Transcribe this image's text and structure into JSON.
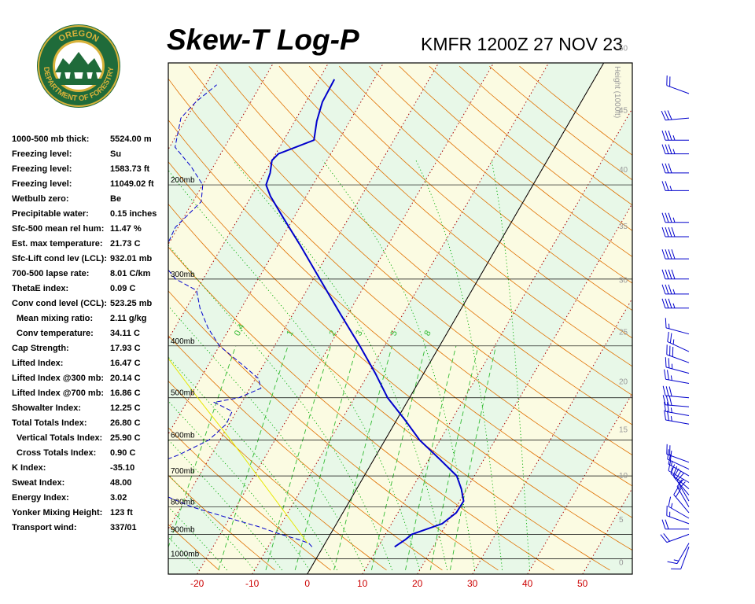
{
  "header": {
    "title": "Skew-T Log-P",
    "station": "KMFR 1200Z 27 NOV 23"
  },
  "logo": {
    "top_text": "OREGON",
    "bottom_text": "DEPARTMENT OF FORESTRY",
    "colors": {
      "ring": "#1f6b3a",
      "gold": "#d8b23a",
      "sky": "#ffffff"
    }
  },
  "indices": [
    {
      "label": "1000-500 mb thick:",
      "value": "5524.00 m"
    },
    {
      "label": "Freezing level:",
      "value": "Su"
    },
    {
      "label": "Freezing level:",
      "value": "1583.73 ft"
    },
    {
      "label": "Freezing level:",
      "value": "11049.02 ft"
    },
    {
      "label": "Wetbulb zero:",
      "value": "Be"
    },
    {
      "label": "Precipitable water:",
      "value": "0.15 inches"
    },
    {
      "label": "Sfc-500 mean rel hum:",
      "value": "11.47 %"
    },
    {
      "label": "Est. max temperature:",
      "value": "21.73 C"
    },
    {
      "label": "Sfc-Lift cond lev (LCL):",
      "value": "932.01 mb"
    },
    {
      "label": "700-500 lapse rate:",
      "value": "8.01 C/km"
    },
    {
      "label": "ThetaE index:",
      "value": "0.09 C"
    },
    {
      "label": "Conv cond level (CCL):",
      "value": "523.25 mb"
    },
    {
      "label": "Mean mixing ratio:",
      "value": "2.11 g/kg",
      "indent": true
    },
    {
      "label": "Conv temperature:",
      "value": "34.11 C",
      "indent": true
    },
    {
      "label": "Cap Strength:",
      "value": "17.93 C"
    },
    {
      "label": "Lifted Index:",
      "value": "16.47 C"
    },
    {
      "label": "Lifted Index @300 mb:",
      "value": "20.14 C"
    },
    {
      "label": "Lifted Index @700 mb:",
      "value": "16.86 C"
    },
    {
      "label": "Showalter Index:",
      "value": "12.25 C"
    },
    {
      "label": "Total Totals Index:",
      "value": "26.80 C"
    },
    {
      "label": "Vertical Totals Index:",
      "value": "25.90 C",
      "indent": true
    },
    {
      "label": "Cross Totals Index:",
      "value": "0.90 C",
      "indent": true
    },
    {
      "label": "K Index:",
      "value": "-35.10"
    },
    {
      "label": "Sweat Index:",
      "value": "48.00"
    },
    {
      "label": "Energy Index:",
      "value": "3.02"
    },
    {
      "label": "Yonker Mixing Height:",
      "value": "123 ft"
    },
    {
      "label": "Transport wind:",
      "value": "337/01"
    }
  ],
  "chart_data": {
    "type": "line",
    "title": "Skew-T Log-P",
    "subtitle": "KMFR 1200Z 27 NOV 23",
    "xlabel": "",
    "ylabel": "",
    "x_ticks": [
      -20,
      -10,
      0,
      10,
      20,
      30,
      40,
      50
    ],
    "pressure_levels": [
      "200mb",
      "300mb",
      "400mb",
      "500mb",
      "600mb",
      "700mb",
      "800mb",
      "900mb",
      "1000mb"
    ],
    "pressure_values": [
      200,
      300,
      400,
      500,
      600,
      700,
      800,
      900,
      1000
    ],
    "height_axis_label": "Height (1000ft)",
    "height_ticks": [
      0,
      5,
      10,
      15,
      20,
      25,
      30,
      35,
      40,
      45,
      50
    ],
    "mixing_ratio_labels": [
      "0.4",
      "1",
      "2",
      "3",
      "5",
      "8"
    ],
    "series": [
      {
        "name": "Temperature",
        "color": "#0000cc",
        "style": "solid",
        "points": [
          {
            "p": 950,
            "t": 13.0
          },
          {
            "p": 920,
            "t": 14.2
          },
          {
            "p": 900,
            "t": 14.8
          },
          {
            "p": 860,
            "t": 19.2
          },
          {
            "p": 820,
            "t": 20.6
          },
          {
            "p": 780,
            "t": 20.7
          },
          {
            "p": 740,
            "t": 19.0
          },
          {
            "p": 700,
            "t": 16.8
          },
          {
            "p": 650,
            "t": 11.8
          },
          {
            "p": 600,
            "t": 6.3
          },
          {
            "p": 550,
            "t": 1.5
          },
          {
            "p": 500,
            "t": -4.0
          },
          {
            "p": 450,
            "t": -8.8
          },
          {
            "p": 400,
            "t": -14.5
          },
          {
            "p": 350,
            "t": -21.2
          },
          {
            "p": 300,
            "t": -28.8
          },
          {
            "p": 260,
            "t": -35.8
          },
          {
            "p": 230,
            "t": -42.0
          },
          {
            "p": 210,
            "t": -46.5
          },
          {
            "p": 200,
            "t": -48.5
          },
          {
            "p": 190,
            "t": -49.0
          },
          {
            "p": 180,
            "t": -50.0
          },
          {
            "p": 175,
            "t": -49.5
          },
          {
            "p": 165,
            "t": -44.5
          },
          {
            "p": 152,
            "t": -46.0
          },
          {
            "p": 140,
            "t": -47.0
          },
          {
            "p": 127,
            "t": -47.2
          }
        ]
      },
      {
        "name": "Dewpoint",
        "color": "#0000cc",
        "style": "dashed",
        "points": [
          {
            "p": 950,
            "t": -2.0
          },
          {
            "p": 935,
            "t": -3.0
          },
          {
            "p": 920,
            "t": -5.3
          },
          {
            "p": 900,
            "t": -9.0
          },
          {
            "p": 870,
            "t": -14.0
          },
          {
            "p": 840,
            "t": -20.0
          },
          {
            "p": 800,
            "t": -28.0
          },
          {
            "p": 760,
            "t": -34.5
          },
          {
            "p": 730,
            "t": -39.5
          },
          {
            "p": 700,
            "t": -41.0
          },
          {
            "p": 670,
            "t": -40.0
          },
          {
            "p": 640,
            "t": -36.0
          },
          {
            "p": 600,
            "t": -32.0
          },
          {
            "p": 560,
            "t": -30.5
          },
          {
            "p": 530,
            "t": -30.8
          },
          {
            "p": 510,
            "t": -35.0
          },
          {
            "p": 500,
            "t": -31.0
          },
          {
            "p": 480,
            "t": -28.0
          },
          {
            "p": 460,
            "t": -29.5
          },
          {
            "p": 430,
            "t": -34.5
          },
          {
            "p": 400,
            "t": -40.0
          },
          {
            "p": 370,
            "t": -44.0
          },
          {
            "p": 340,
            "t": -47.5
          },
          {
            "p": 315,
            "t": -50.0
          },
          {
            "p": 300,
            "t": -55.0
          },
          {
            "p": 285,
            "t": -58.0
          },
          {
            "p": 265,
            "t": -60.0
          },
          {
            "p": 240,
            "t": -60.5
          },
          {
            "p": 215,
            "t": -58.5
          },
          {
            "p": 200,
            "t": -60.0
          },
          {
            "p": 185,
            "t": -64.0
          },
          {
            "p": 170,
            "t": -69.0
          },
          {
            "p": 150,
            "t": -71.0
          },
          {
            "p": 140,
            "t": -70.0
          },
          {
            "p": 130,
            "t": -68.0
          }
        ]
      },
      {
        "name": "Parcel",
        "color": "#e8e800",
        "style": "solid",
        "points": [
          {
            "p": 935,
            "t": -3.2
          },
          {
            "p": 850,
            "t": -8.5
          },
          {
            "p": 750,
            "t": -15.5
          },
          {
            "p": 650,
            "t": -23.5
          },
          {
            "p": 600,
            "t": -28.0
          },
          {
            "p": 500,
            "t": -38.5
          },
          {
            "p": 400,
            "t": -51.0
          }
        ]
      }
    ],
    "wind_barbs": [
      {
        "p": 950,
        "dir": 200,
        "spd": 10
      },
      {
        "p": 935,
        "dir": 210,
        "spd": 15
      },
      {
        "p": 900,
        "dir": 250,
        "spd": 20
      },
      {
        "p": 880,
        "dir": 270,
        "spd": 20
      },
      {
        "p": 860,
        "dir": 290,
        "spd": 15
      },
      {
        "p": 840,
        "dir": 300,
        "spd": 15
      },
      {
        "p": 820,
        "dir": 320,
        "spd": 20
      },
      {
        "p": 800,
        "dir": 330,
        "spd": 20
      },
      {
        "p": 780,
        "dir": 330,
        "spd": 15
      },
      {
        "p": 760,
        "dir": 320,
        "spd": 20
      },
      {
        "p": 740,
        "dir": 310,
        "spd": 20
      },
      {
        "p": 720,
        "dir": 300,
        "spd": 15
      },
      {
        "p": 700,
        "dir": 300,
        "spd": 15
      },
      {
        "p": 680,
        "dir": 295,
        "spd": 20
      },
      {
        "p": 660,
        "dir": 290,
        "spd": 20
      },
      {
        "p": 560,
        "dir": 280,
        "spd": 25
      },
      {
        "p": 540,
        "dir": 280,
        "spd": 25
      },
      {
        "p": 520,
        "dir": 275,
        "spd": 30
      },
      {
        "p": 500,
        "dir": 275,
        "spd": 30
      },
      {
        "p": 470,
        "dir": 280,
        "spd": 25
      },
      {
        "p": 450,
        "dir": 285,
        "spd": 25
      },
      {
        "p": 430,
        "dir": 290,
        "spd": 30
      },
      {
        "p": 410,
        "dir": 295,
        "spd": 25
      },
      {
        "p": 380,
        "dir": 285,
        "spd": 15
      },
      {
        "p": 340,
        "dir": 270,
        "spd": 35
      },
      {
        "p": 320,
        "dir": 270,
        "spd": 35
      },
      {
        "p": 300,
        "dir": 270,
        "spd": 40
      },
      {
        "p": 275,
        "dir": 270,
        "spd": 40
      },
      {
        "p": 250,
        "dir": 270,
        "spd": 40
      },
      {
        "p": 235,
        "dir": 270,
        "spd": 35
      },
      {
        "p": 205,
        "dir": 270,
        "spd": 25
      },
      {
        "p": 190,
        "dir": 270,
        "spd": 30
      },
      {
        "p": 175,
        "dir": 270,
        "spd": 35
      },
      {
        "p": 165,
        "dir": 270,
        "spd": 35
      },
      {
        "p": 150,
        "dir": 265,
        "spd": 30
      },
      {
        "p": 135,
        "dir": 290,
        "spd": 20
      }
    ],
    "colors": {
      "dry_adiabat": "#e07000",
      "moist_adiabat": "#00aa00",
      "mixing_ratio": "#33bb33",
      "isotherm": "#aa0000",
      "x_ticks": "#cc0000",
      "profile": "#0000cc",
      "parcel": "#e8e800",
      "band_green": "#e8f8e8",
      "band_yellow": "#fbfbe2"
    }
  }
}
